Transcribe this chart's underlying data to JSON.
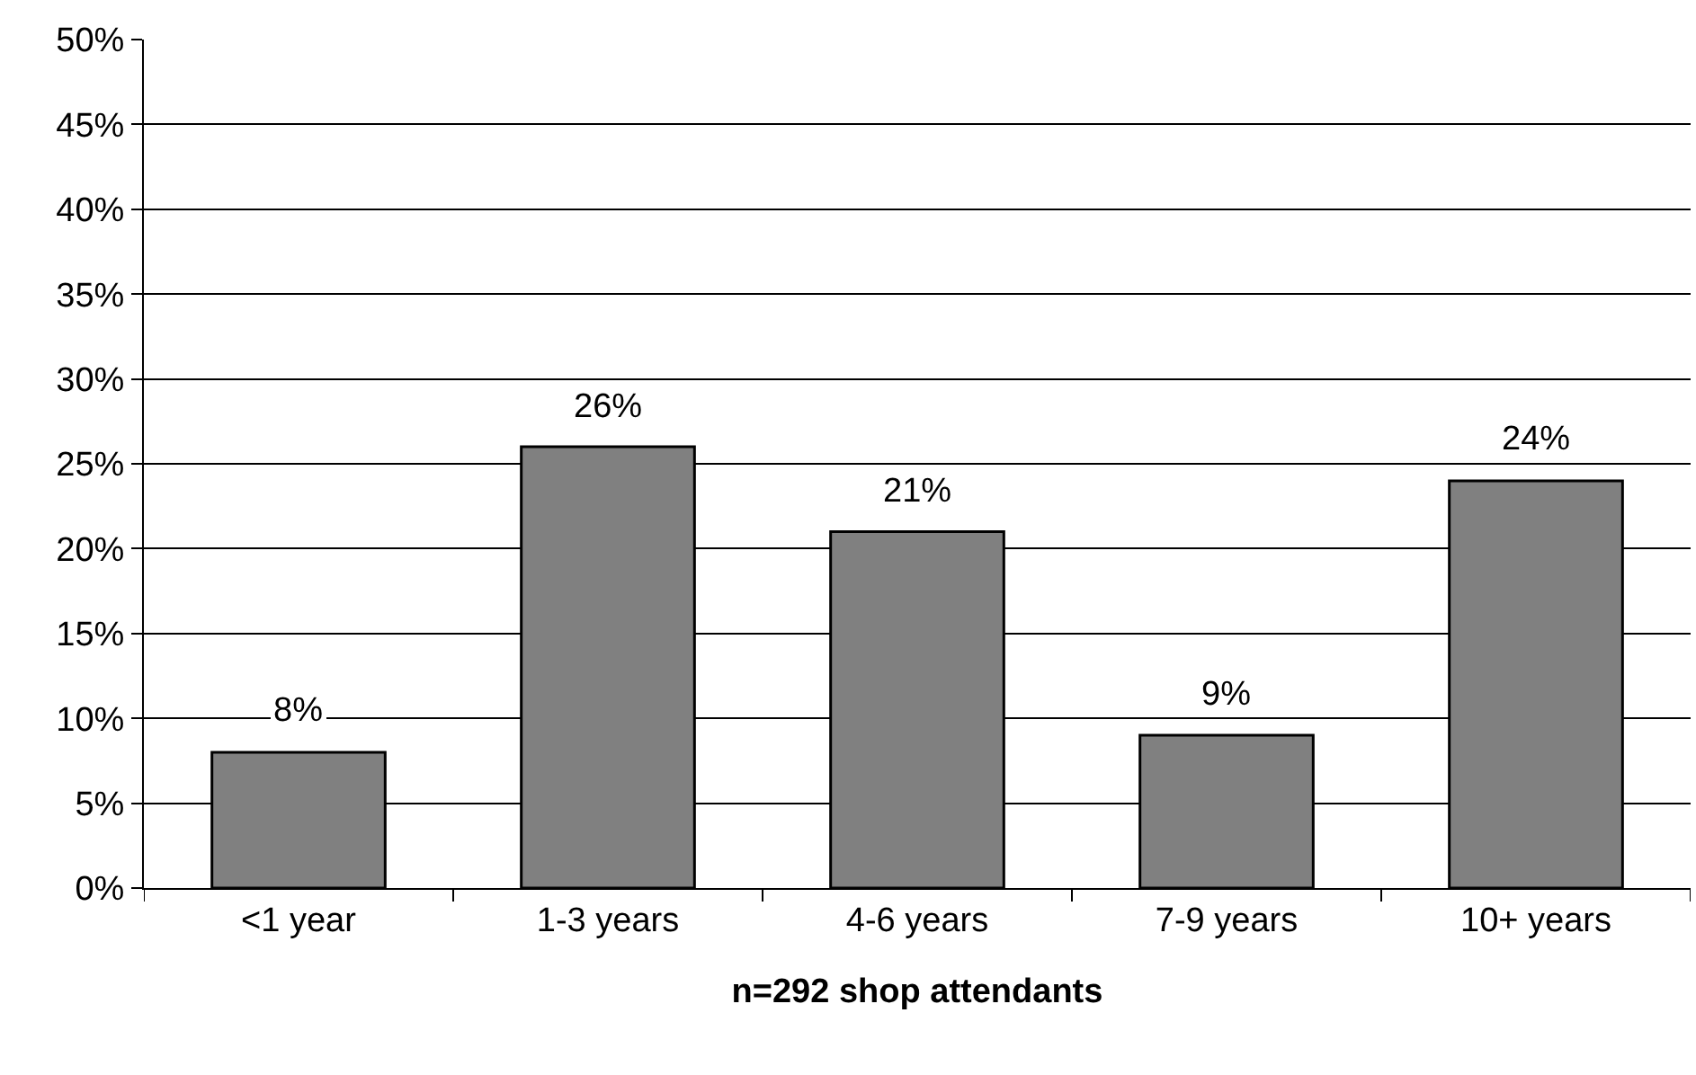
{
  "chart_data": {
    "type": "bar",
    "xlabel": "n=292 shop attendants",
    "categories": [
      "<1 year",
      "1-3 years",
      "4-6 years",
      "7-9 years",
      "10+ years"
    ],
    "values": [
      8,
      26,
      21,
      9,
      24
    ],
    "value_labels": [
      "8%",
      "26%",
      "21%",
      "9%",
      "24%"
    ],
    "color": "#808080",
    "ylim": [
      0,
      50
    ],
    "yticks": [
      {
        "value": 0,
        "label": "0%"
      },
      {
        "value": 5,
        "label": "5%"
      },
      {
        "value": 10,
        "label": "10%"
      },
      {
        "value": 15,
        "label": "15%"
      },
      {
        "value": 20,
        "label": "20%"
      },
      {
        "value": 25,
        "label": "25%"
      },
      {
        "value": 30,
        "label": "30%"
      },
      {
        "value": 35,
        "label": "35%"
      },
      {
        "value": 40,
        "label": "40%"
      },
      {
        "value": 45,
        "label": "45%"
      },
      {
        "value": 50,
        "label": "50%"
      }
    ],
    "grid": "y"
  }
}
